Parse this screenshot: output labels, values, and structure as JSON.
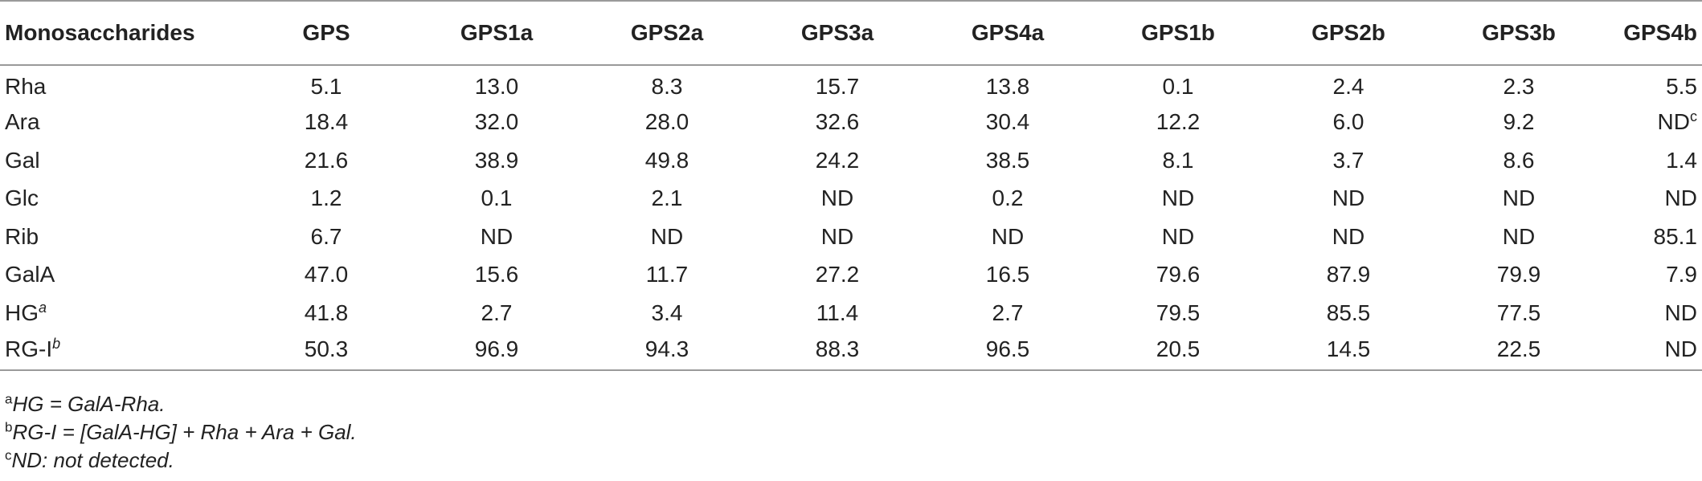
{
  "table": {
    "headers": [
      "Monosaccharides",
      "GPS",
      "GPS1a",
      "GPS2a",
      "GPS3a",
      "GPS4a",
      "GPS1b",
      "GPS2b",
      "GPS3b",
      "GPS4b"
    ],
    "rows": [
      {
        "label": "Rha",
        "label_sup": "",
        "values": [
          "5.1",
          "13.0",
          "8.3",
          "15.7",
          "13.8",
          "0.1",
          "2.4",
          "2.3",
          "5.5"
        ],
        "last_sup": ""
      },
      {
        "label": "Ara",
        "label_sup": "",
        "values": [
          "18.4",
          "32.0",
          "28.0",
          "32.6",
          "30.4",
          "12.2",
          "6.0",
          "9.2",
          "ND"
        ],
        "last_sup": "c"
      },
      {
        "label": "Gal",
        "label_sup": "",
        "values": [
          "21.6",
          "38.9",
          "49.8",
          "24.2",
          "38.5",
          "8.1",
          "3.7",
          "8.6",
          "1.4"
        ],
        "last_sup": ""
      },
      {
        "label": "Glc",
        "label_sup": "",
        "values": [
          "1.2",
          "0.1",
          "2.1",
          "ND",
          "0.2",
          "ND",
          "ND",
          "ND",
          "ND"
        ],
        "last_sup": ""
      },
      {
        "label": "Rib",
        "label_sup": "",
        "values": [
          "6.7",
          "ND",
          "ND",
          "ND",
          "ND",
          "ND",
          "ND",
          "ND",
          "85.1"
        ],
        "last_sup": ""
      },
      {
        "label": "GalA",
        "label_sup": "",
        "values": [
          "47.0",
          "15.6",
          "11.7",
          "27.2",
          "16.5",
          "79.6",
          "87.9",
          "79.9",
          "7.9"
        ],
        "last_sup": ""
      },
      {
        "label": "HG",
        "label_sup": "a",
        "values": [
          "41.8",
          "2.7",
          "3.4",
          "11.4",
          "2.7",
          "79.5",
          "85.5",
          "77.5",
          "ND"
        ],
        "last_sup": ""
      },
      {
        "label": "RG-I",
        "label_sup": "b",
        "values": [
          "50.3",
          "96.9",
          "94.3",
          "88.3",
          "96.5",
          "20.5",
          "14.5",
          "22.5",
          "ND"
        ],
        "last_sup": ""
      }
    ]
  },
  "footnotes": [
    {
      "marker": "a",
      "text": "HG = GalA-Rha."
    },
    {
      "marker": "b",
      "text": "RG-I = [GalA-HG] + Rha + Ara + Gal."
    },
    {
      "marker": "c",
      "text": "ND: not detected."
    }
  ]
}
